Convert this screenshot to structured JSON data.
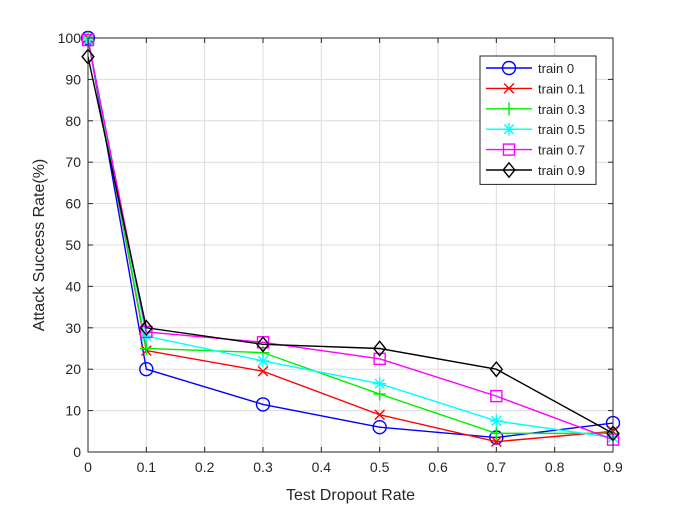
{
  "chart_data": {
    "type": "line",
    "title": "",
    "xlabel": "Test Dropout Rate",
    "ylabel": "Attack Success Rate(%)",
    "x": [
      0,
      0.1,
      0.3,
      0.5,
      0.7,
      0.9
    ],
    "xlim": [
      0,
      0.9
    ],
    "ylim": [
      0,
      100
    ],
    "xticks": [
      0,
      0.1,
      0.2,
      0.3,
      0.4,
      0.5,
      0.6,
      0.7,
      0.8,
      0.9
    ],
    "xtick_labels": [
      "0",
      "0.1",
      "0.2",
      "0.3",
      "0.4",
      "0.5",
      "0.6",
      "0.7",
      "0.8",
      "0.9"
    ],
    "yticks": [
      0,
      10,
      20,
      30,
      40,
      50,
      60,
      70,
      80,
      90,
      100
    ],
    "ytick_labels": [
      "0",
      "10",
      "20",
      "30",
      "40",
      "50",
      "60",
      "70",
      "80",
      "90",
      "100"
    ],
    "grid": true,
    "legend_position": "top-right",
    "series": [
      {
        "name": "train 0",
        "color": "#0000ff",
        "marker": "circle",
        "values": [
          100,
          20,
          11.5,
          6,
          3.5,
          7
        ]
      },
      {
        "name": "train 0.1",
        "color": "#ff0000",
        "marker": "x",
        "values": [
          100,
          24.5,
          19.5,
          9,
          2.5,
          5
        ]
      },
      {
        "name": "train 0.3",
        "color": "#00ee00",
        "marker": "plus",
        "values": [
          100,
          25,
          24,
          14,
          4.5,
          4.5
        ]
      },
      {
        "name": "train 0.5",
        "color": "#00ffff",
        "marker": "star",
        "values": [
          99.5,
          28,
          22,
          16.5,
          7.5,
          3.5
        ]
      },
      {
        "name": "train 0.7",
        "color": "#ff00ff",
        "marker": "square",
        "values": [
          99.5,
          29,
          26.5,
          22.5,
          13.5,
          3
        ]
      },
      {
        "name": "train 0.9",
        "color": "#000000",
        "marker": "diamond",
        "values": [
          95.5,
          30,
          26,
          25,
          20,
          4.5
        ]
      }
    ]
  }
}
